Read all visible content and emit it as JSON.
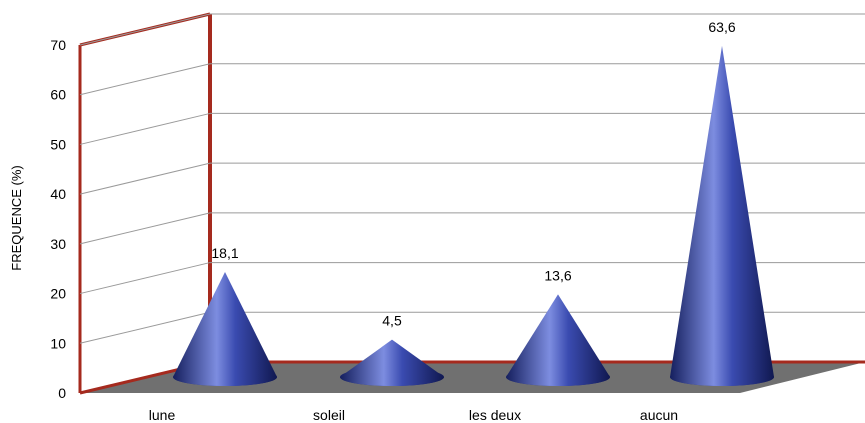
{
  "chart_data": {
    "type": "bar",
    "style": "3d-cone",
    "categories": [
      "lune",
      "soleil",
      "les deux",
      "aucun"
    ],
    "values": [
      18.1,
      4.5,
      13.6,
      63.6
    ],
    "data_labels": [
      "18,1",
      "4,5",
      "13,6",
      "63,6"
    ],
    "title": "",
    "xlabel": "",
    "ylabel": "FREQUENCE (%)",
    "ylim": [
      0,
      70
    ],
    "yticks": [
      0,
      10,
      20,
      30,
      40,
      50,
      60,
      70
    ],
    "grid": true,
    "legend": "none",
    "colors": {
      "cone": "#2f3f9e",
      "cone_light": "#7d8de0",
      "cone_dark": "#151f5e",
      "wall": "#a52a1e",
      "floor": "#707070",
      "grid": "#9a9a9a"
    }
  }
}
